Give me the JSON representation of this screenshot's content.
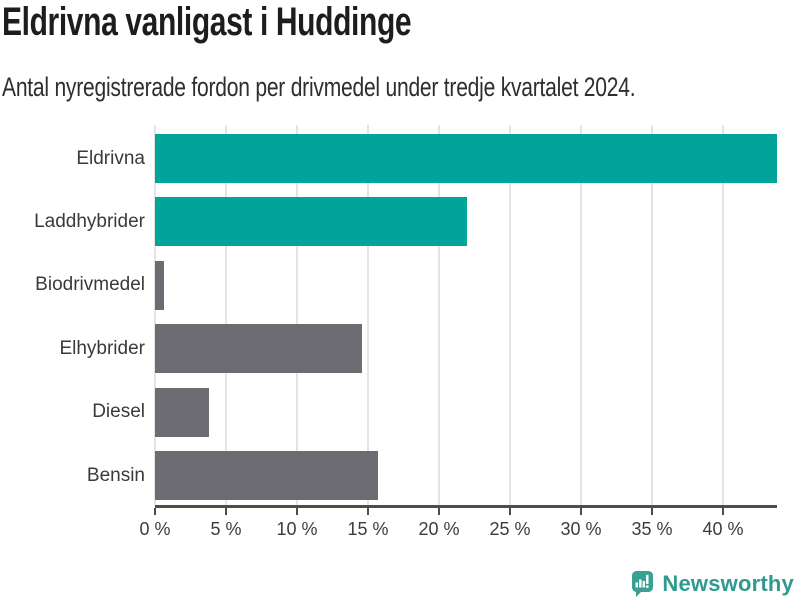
{
  "header": {
    "title": "Eldrivna vanligast i Huddinge",
    "subtitle": "Antal nyregistrerade fordon per drivmedel under tredje kvartalet 2024."
  },
  "chart_data": {
    "type": "bar",
    "orientation": "horizontal",
    "title": "Eldrivna vanligast i Huddinge",
    "subtitle": "Antal nyregistrerade fordon per drivmedel under tredje kvartalet 2024.",
    "categories": [
      "Eldrivna",
      "Laddhybrider",
      "Biodrivmedel",
      "Elhybrider",
      "Diesel",
      "Bensin"
    ],
    "values": [
      43.8,
      22.0,
      0.6,
      14.6,
      3.8,
      15.7
    ],
    "unit": "%",
    "bar_colors": [
      "#00a49a",
      "#00a49a",
      "#6d6c72",
      "#6d6c72",
      "#6d6c72",
      "#6d6c72"
    ],
    "xlim": [
      0,
      43.8
    ],
    "xticks": [
      0,
      5,
      10,
      15,
      20,
      25,
      30,
      35,
      40
    ],
    "xtick_labels": [
      "0 %",
      "5 %",
      "10 %",
      "15 %",
      "20 %",
      "25 %",
      "30 %",
      "35 %",
      "40 %"
    ],
    "grid": true,
    "legend": "none",
    "style": {
      "color_primary": "#00a49a",
      "color_secondary": "#6d6c72",
      "gridline_color": "#e4e4e4",
      "axis_color": "#4c4c4c",
      "label_color": "#3a3a3a"
    }
  },
  "footer": {
    "brand": "Newsworthy",
    "brand_color": "#2f9a8f",
    "logo_icon": "newsworthy-bar-chart-bubble-icon"
  }
}
